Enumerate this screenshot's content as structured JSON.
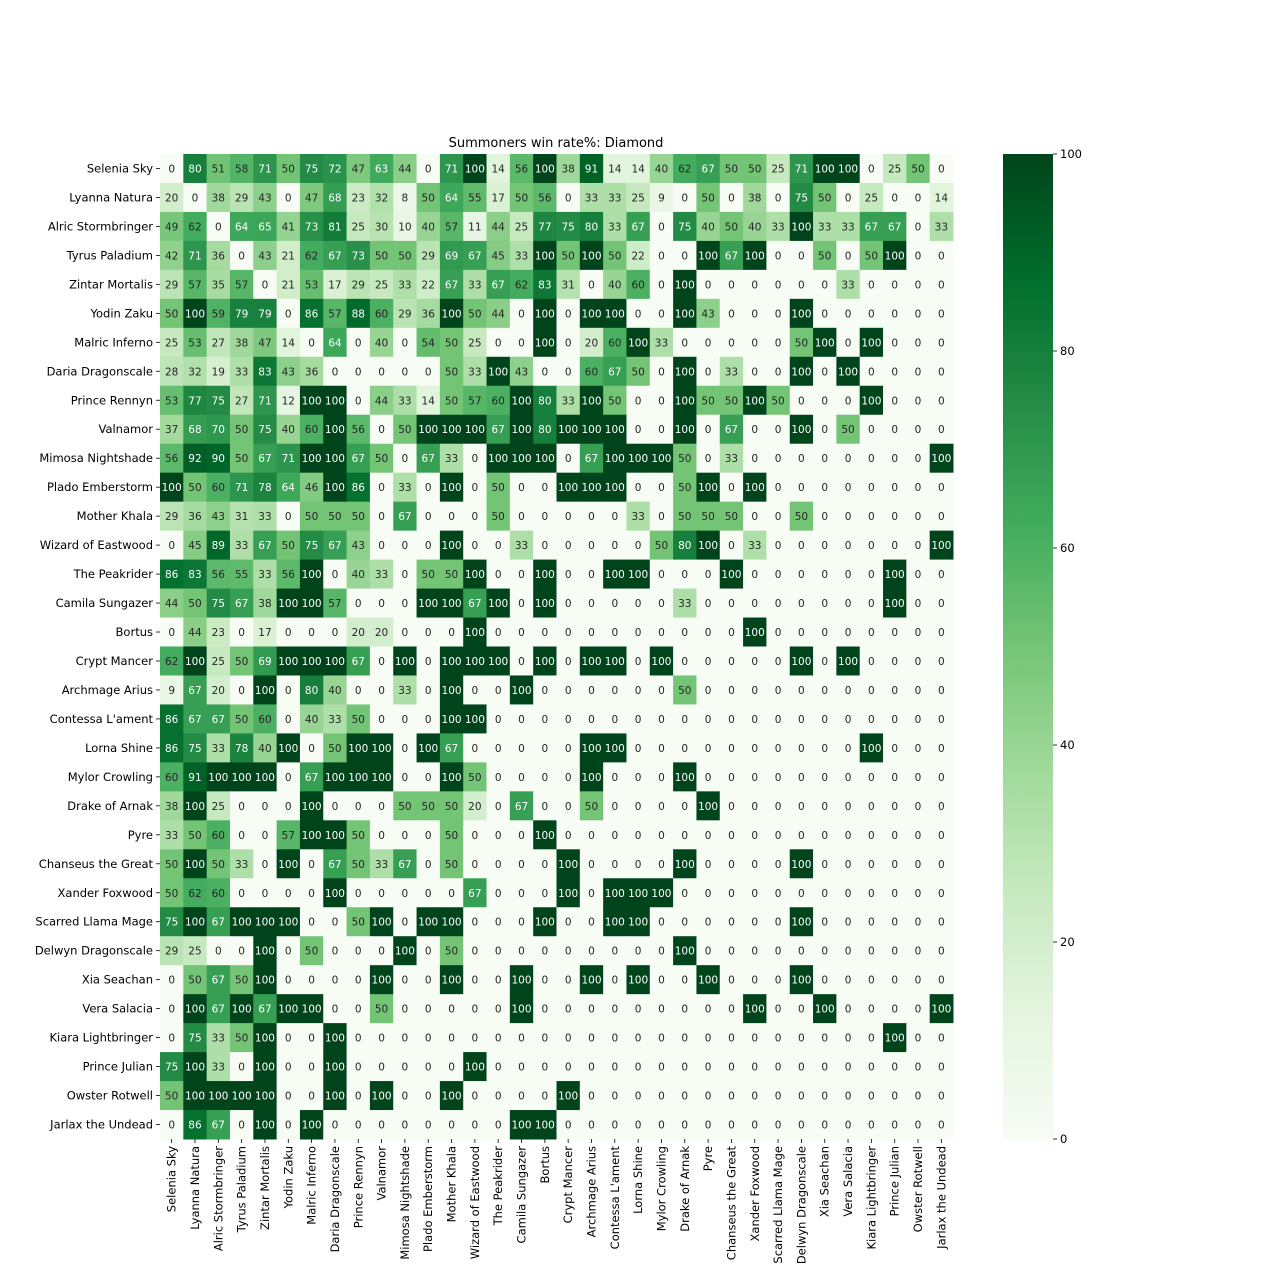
{
  "chart_data": {
    "type": "heatmap",
    "title": "Summoners win rate%: Diamond",
    "colormap": "Greens",
    "vmin": 0,
    "vmax": 100,
    "colorbar_ticks": [
      0,
      20,
      40,
      60,
      80,
      100
    ],
    "rows": [
      "Selenia Sky",
      "Lyanna Natura",
      "Alric Stormbringer",
      "Tyrus Paladium",
      "Zintar Mortalis",
      "Yodin Zaku",
      "Malric Inferno",
      "Daria Dragonscale",
      "Prince Rennyn",
      "Valnamor",
      "Mimosa Nightshade",
      "Plado Emberstorm",
      "Mother Khala",
      "Wizard of Eastwood",
      "The Peakrider",
      "Camila Sungazer",
      "Bortus",
      "Crypt Mancer",
      "Archmage Arius",
      "Contessa L'ament",
      "Lorna Shine",
      "Mylor Crowling",
      "Drake of Arnak",
      "Pyre",
      "Chanseus the Great",
      "Xander Foxwood",
      "Scarred Llama Mage",
      "Delwyn Dragonscale",
      "Xia Seachan",
      "Vera Salacia",
      "Kiara Lightbringer",
      "Prince Julian",
      "Owster Rotwell",
      "Jarlax the Undead"
    ],
    "columns": [
      "Selenia Sky",
      "Lyanna Natura",
      "Alric Stormbringer",
      "Tyrus Paladium",
      "Zintar Mortalis",
      "Yodin Zaku",
      "Malric Inferno",
      "Daria Dragonscale",
      "Prince Rennyn",
      "Valnamor",
      "Mimosa Nightshade",
      "Plado Emberstorm",
      "Mother Khala",
      "Wizard of Eastwood",
      "The Peakrider",
      "Camila Sungazer",
      "Bortus",
      "Crypt Mancer",
      "Archmage Arius",
      "Contessa L'ament",
      "Lorna Shine",
      "Mylor Crowling",
      "Drake of Arnak",
      "Pyre",
      "Chanseus the Great",
      "Xander Foxwood",
      "Scarred Llama Mage",
      "Delwyn Dragonscale",
      "Xia Seachan",
      "Vera Salacia",
      "Kiara Lightbringer",
      "Prince Julian",
      "Owster Rotwell",
      "Jarlax the Undead"
    ],
    "values": [
      [
        0,
        80,
        51,
        58,
        71,
        50,
        75,
        72,
        47,
        63,
        44,
        0,
        71,
        100,
        14,
        56,
        100,
        38,
        91,
        14,
        14,
        40,
        62,
        67,
        50,
        50,
        25,
        71,
        100,
        100,
        0,
        25,
        50,
        0
      ],
      [
        20,
        0,
        38,
        29,
        43,
        0,
        47,
        68,
        23,
        32,
        8,
        50,
        64,
        55,
        17,
        50,
        56,
        0,
        33,
        33,
        25,
        9,
        0,
        50,
        0,
        38,
        0,
        75,
        50,
        0,
        25,
        0,
        0,
        14
      ],
      [
        49,
        62,
        0,
        64,
        65,
        41,
        73,
        81,
        25,
        30,
        10,
        40,
        57,
        11,
        44,
        25,
        77,
        75,
        80,
        33,
        67,
        0,
        75,
        40,
        50,
        40,
        33,
        100,
        33,
        33,
        67,
        67,
        0,
        33
      ],
      [
        42,
        71,
        36,
        0,
        43,
        21,
        62,
        67,
        73,
        50,
        50,
        29,
        69,
        67,
        45,
        33,
        100,
        50,
        100,
        50,
        22,
        0,
        0,
        100,
        67,
        100,
        0,
        0,
        50,
        0,
        50,
        100,
        0,
        0
      ],
      [
        29,
        57,
        35,
        57,
        0,
        21,
        53,
        17,
        29,
        25,
        33,
        22,
        67,
        33,
        67,
        62,
        83,
        31,
        0,
        40,
        60,
        0,
        100,
        0,
        0,
        0,
        0,
        0,
        0,
        33,
        0,
        0,
        0,
        0
      ],
      [
        50,
        100,
        59,
        79,
        79,
        0,
        86,
        57,
        88,
        60,
        29,
        36,
        100,
        50,
        44,
        0,
        100,
        0,
        100,
        100,
        0,
        0,
        100,
        43,
        0,
        0,
        0,
        100,
        0,
        0,
        0,
        0,
        0,
        0
      ],
      [
        25,
        53,
        27,
        38,
        47,
        14,
        0,
        64,
        0,
        40,
        0,
        54,
        50,
        25,
        0,
        0,
        100,
        0,
        20,
        60,
        100,
        33,
        0,
        0,
        0,
        0,
        0,
        50,
        100,
        0,
        100,
        0,
        0,
        0
      ],
      [
        28,
        32,
        19,
        33,
        83,
        43,
        36,
        0,
        0,
        0,
        0,
        0,
        50,
        33,
        100,
        43,
        0,
        0,
        60,
        67,
        50,
        0,
        100,
        0,
        33,
        0,
        0,
        100,
        0,
        100,
        0,
        0,
        0,
        0
      ],
      [
        53,
        77,
        75,
        27,
        71,
        12,
        100,
        100,
        0,
        44,
        33,
        14,
        50,
        57,
        60,
        100,
        80,
        33,
        100,
        50,
        0,
        0,
        100,
        50,
        50,
        100,
        50,
        0,
        0,
        0,
        100,
        0,
        0,
        0
      ],
      [
        37,
        68,
        70,
        50,
        75,
        40,
        60,
        100,
        56,
        0,
        50,
        100,
        100,
        100,
        67,
        100,
        80,
        100,
        100,
        100,
        0,
        0,
        100,
        0,
        67,
        0,
        0,
        100,
        0,
        50,
        0,
        0,
        0,
        0
      ],
      [
        56,
        92,
        90,
        50,
        67,
        71,
        100,
        100,
        67,
        50,
        0,
        67,
        33,
        0,
        100,
        100,
        100,
        0,
        67,
        100,
        100,
        100,
        50,
        0,
        33,
        0,
        0,
        0,
        0,
        0,
        0,
        0,
        0,
        100
      ],
      [
        100,
        50,
        60,
        71,
        78,
        64,
        46,
        100,
        86,
        0,
        33,
        0,
        100,
        0,
        50,
        0,
        0,
        100,
        100,
        100,
        0,
        0,
        50,
        100,
        0,
        100,
        0,
        0,
        0,
        0,
        0,
        0,
        0,
        0
      ],
      [
        29,
        36,
        43,
        31,
        33,
        0,
        50,
        50,
        50,
        0,
        67,
        0,
        0,
        0,
        50,
        0,
        0,
        0,
        0,
        0,
        33,
        0,
        50,
        50,
        50,
        0,
        0,
        50,
        0,
        0,
        0,
        0,
        0,
        0
      ],
      [
        0,
        45,
        89,
        33,
        67,
        50,
        75,
        67,
        43,
        0,
        0,
        0,
        100,
        0,
        0,
        33,
        0,
        0,
        0,
        0,
        0,
        50,
        80,
        100,
        0,
        33,
        0,
        0,
        0,
        0,
        0,
        0,
        0,
        100
      ],
      [
        86,
        83,
        56,
        55,
        33,
        56,
        100,
        0,
        40,
        33,
        0,
        50,
        50,
        100,
        0,
        0,
        100,
        0,
        0,
        100,
        100,
        0,
        0,
        0,
        100,
        0,
        0,
        0,
        0,
        0,
        0,
        100,
        0,
        0
      ],
      [
        44,
        50,
        75,
        67,
        38,
        100,
        100,
        57,
        0,
        0,
        0,
        100,
        100,
        67,
        100,
        0,
        100,
        0,
        0,
        0,
        0,
        0,
        33,
        0,
        0,
        0,
        0,
        0,
        0,
        0,
        0,
        100,
        0,
        0
      ],
      [
        0,
        44,
        23,
        0,
        17,
        0,
        0,
        0,
        20,
        20,
        0,
        0,
        0,
        100,
        0,
        0,
        0,
        0,
        0,
        0,
        0,
        0,
        0,
        0,
        0,
        100,
        0,
        0,
        0,
        0,
        0,
        0,
        0,
        0
      ],
      [
        62,
        100,
        25,
        50,
        69,
        100,
        100,
        100,
        67,
        0,
        100,
        0,
        100,
        100,
        100,
        0,
        100,
        0,
        100,
        100,
        0,
        100,
        0,
        0,
        0,
        0,
        0,
        100,
        0,
        100,
        0,
        0,
        0,
        0
      ],
      [
        9,
        67,
        20,
        0,
        100,
        0,
        80,
        40,
        0,
        0,
        33,
        0,
        100,
        0,
        0,
        100,
        0,
        0,
        0,
        0,
        0,
        0,
        50,
        0,
        0,
        0,
        0,
        0,
        0,
        0,
        0,
        0,
        0,
        0
      ],
      [
        86,
        67,
        67,
        50,
        60,
        0,
        40,
        33,
        50,
        0,
        0,
        0,
        100,
        100,
        0,
        0,
        0,
        0,
        0,
        0,
        0,
        0,
        0,
        0,
        0,
        0,
        0,
        0,
        0,
        0,
        0,
        0,
        0,
        0
      ],
      [
        86,
        75,
        33,
        78,
        40,
        100,
        0,
        50,
        100,
        100,
        0,
        100,
        67,
        0,
        0,
        0,
        0,
        0,
        100,
        100,
        0,
        0,
        0,
        0,
        0,
        0,
        0,
        0,
        0,
        0,
        100,
        0,
        0,
        0
      ],
      [
        60,
        91,
        100,
        100,
        100,
        0,
        67,
        100,
        100,
        100,
        0,
        0,
        100,
        50,
        0,
        0,
        0,
        0,
        100,
        0,
        0,
        0,
        100,
        0,
        0,
        0,
        0,
        0,
        0,
        0,
        0,
        0,
        0,
        0
      ],
      [
        38,
        100,
        25,
        0,
        0,
        0,
        100,
        0,
        0,
        0,
        50,
        50,
        50,
        20,
        0,
        67,
        0,
        0,
        50,
        0,
        0,
        0,
        0,
        100,
        0,
        0,
        0,
        0,
        0,
        0,
        0,
        0,
        0,
        0
      ],
      [
        33,
        50,
        60,
        0,
        0,
        57,
        100,
        100,
        50,
        0,
        0,
        0,
        50,
        0,
        0,
        0,
        100,
        0,
        0,
        0,
        0,
        0,
        0,
        0,
        0,
        0,
        0,
        0,
        0,
        0,
        0,
        0,
        0,
        0
      ],
      [
        50,
        100,
        50,
        33,
        0,
        100,
        0,
        67,
        50,
        33,
        67,
        0,
        50,
        0,
        0,
        0,
        0,
        100,
        0,
        0,
        0,
        0,
        100,
        0,
        0,
        0,
        0,
        100,
        0,
        0,
        0,
        0,
        0,
        0
      ],
      [
        50,
        62,
        60,
        0,
        0,
        0,
        0,
        100,
        0,
        0,
        0,
        0,
        0,
        67,
        0,
        0,
        0,
        100,
        0,
        100,
        100,
        100,
        0,
        0,
        0,
        0,
        0,
        0,
        0,
        0,
        0,
        0,
        0,
        0
      ],
      [
        75,
        100,
        67,
        100,
        100,
        100,
        0,
        0,
        50,
        100,
        0,
        100,
        100,
        0,
        0,
        0,
        100,
        0,
        0,
        100,
        100,
        0,
        0,
        0,
        0,
        0,
        0,
        100,
        0,
        0,
        0,
        0,
        0,
        0
      ],
      [
        29,
        25,
        0,
        0,
        100,
        0,
        50,
        0,
        0,
        0,
        100,
        0,
        50,
        0,
        0,
        0,
        0,
        0,
        0,
        0,
        0,
        0,
        100,
        0,
        0,
        0,
        0,
        0,
        0,
        0,
        0,
        0,
        0,
        0
      ],
      [
        0,
        50,
        67,
        50,
        100,
        0,
        0,
        0,
        0,
        100,
        0,
        0,
        100,
        0,
        0,
        100,
        0,
        0,
        100,
        0,
        100,
        0,
        0,
        100,
        0,
        0,
        0,
        100,
        0,
        0,
        0,
        0,
        0,
        0
      ],
      [
        0,
        100,
        67,
        100,
        67,
        100,
        100,
        0,
        0,
        50,
        0,
        0,
        0,
        0,
        0,
        100,
        0,
        0,
        0,
        0,
        0,
        0,
        0,
        0,
        0,
        100,
        0,
        0,
        100,
        0,
        0,
        0,
        0,
        100
      ],
      [
        0,
        75,
        33,
        50,
        100,
        0,
        0,
        100,
        0,
        0,
        0,
        0,
        0,
        0,
        0,
        0,
        0,
        0,
        0,
        0,
        0,
        0,
        0,
        0,
        0,
        0,
        0,
        0,
        0,
        0,
        0,
        100,
        0,
        0
      ],
      [
        75,
        100,
        33,
        0,
        100,
        0,
        0,
        100,
        0,
        0,
        0,
        0,
        0,
        100,
        0,
        0,
        0,
        0,
        0,
        0,
        0,
        0,
        0,
        0,
        0,
        0,
        0,
        0,
        0,
        0,
        0,
        0,
        0,
        0
      ],
      [
        50,
        100,
        100,
        100,
        100,
        0,
        0,
        100,
        0,
        100,
        0,
        0,
        100,
        0,
        0,
        0,
        0,
        100,
        0,
        0,
        0,
        0,
        0,
        0,
        0,
        0,
        0,
        0,
        0,
        0,
        0,
        0,
        0,
        0
      ],
      [
        0,
        86,
        67,
        0,
        100,
        0,
        100,
        0,
        0,
        0,
        0,
        0,
        0,
        0,
        0,
        100,
        100,
        0,
        0,
        0,
        0,
        0,
        0,
        0,
        0,
        0,
        0,
        0,
        0,
        0,
        0,
        0,
        0,
        0
      ]
    ]
  }
}
